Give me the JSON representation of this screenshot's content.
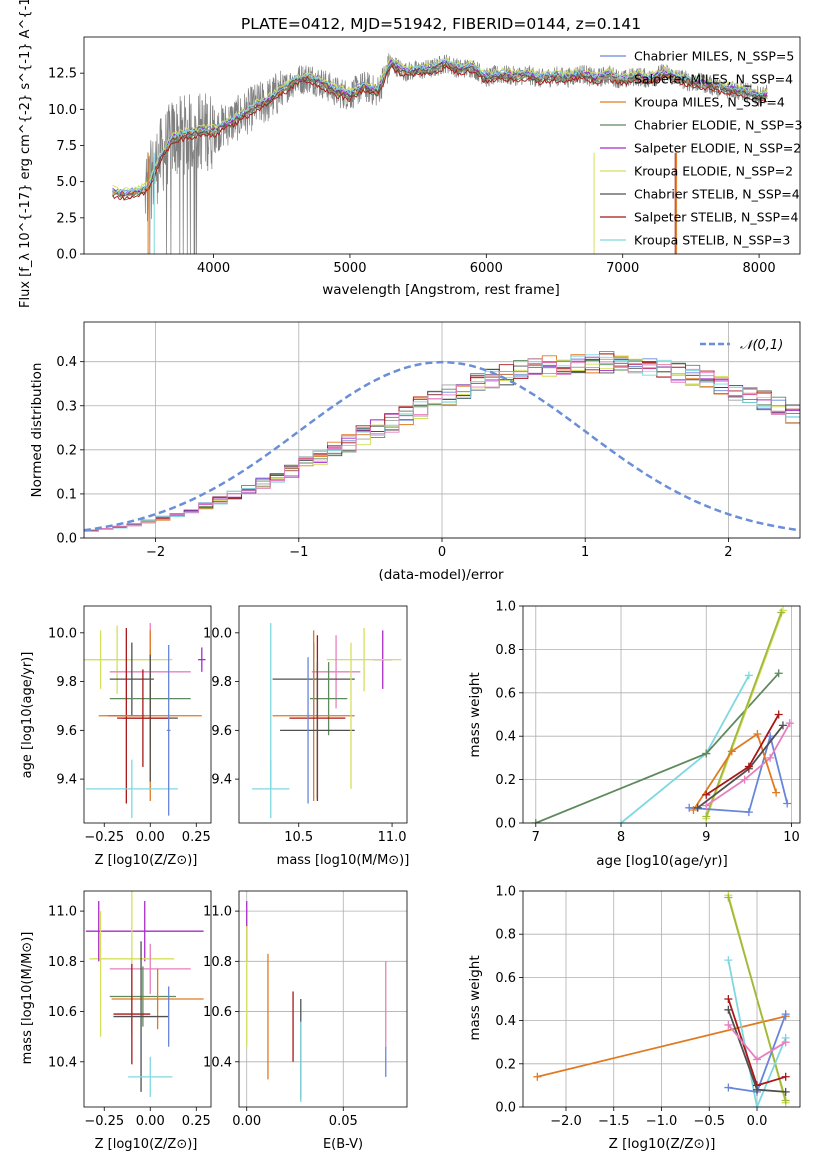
{
  "chart_data": [
    {
      "type": "line",
      "title": "PLATE=0412, MJD=51942, FIBERID=0144, z=0.141",
      "xlabel": "wavelength [Angstrom, rest frame]",
      "ylabel": "Flux [f_λ 10^{-17} erg cm^{-2} s^{-1} A^{-1}]",
      "xlim": [
        3050,
        8300
      ],
      "ylim": [
        0,
        15
      ],
      "xticks": [
        4000,
        5000,
        6000,
        7000,
        8000
      ],
      "yticks": [
        0.0,
        2.5,
        5.0,
        7.5,
        10.0,
        12.5
      ],
      "ytick_labels": [
        "0.0",
        "2.5",
        "5.0",
        "7.5",
        "10.0",
        "12.5"
      ],
      "grid": false,
      "legend_position": "right",
      "data_line": {
        "color": "#808080",
        "x": [
          3260,
          3350,
          3450,
          3520,
          3600,
          3700,
          3800,
          3900,
          4000,
          4100,
          4200,
          4300,
          4400,
          4500,
          4600,
          4700,
          4800,
          4900,
          5000,
          5100,
          5200,
          5300,
          5400,
          5500,
          5600,
          5700,
          5800,
          5900,
          6000,
          6100,
          6200,
          6300,
          6400,
          6500,
          6600,
          6700,
          6800,
          6900,
          7000,
          7100,
          7200,
          7300,
          7400,
          7500,
          7600,
          7700,
          7800,
          7900,
          8000,
          8060
        ],
        "y": [
          4.3,
          4.1,
          4.3,
          4.6,
          6.5,
          8.0,
          8.3,
          8.5,
          8.5,
          9.0,
          9.5,
          10.2,
          10.6,
          11.3,
          12.0,
          12.2,
          11.8,
          11.2,
          11.0,
          11.6,
          11.2,
          13.2,
          12.6,
          12.7,
          12.8,
          13.2,
          12.8,
          12.9,
          12.2,
          12.4,
          12.3,
          12.4,
          12.1,
          12.3,
          12.2,
          12.5,
          12.1,
          12.4,
          12.0,
          12.3,
          12.1,
          12.5,
          12.2,
          11.9,
          11.8,
          11.5,
          11.4,
          11.2,
          10.9,
          11.0
        ]
      },
      "series": [
        {
          "name": "Chabrier MILES, N_SSP=5",
          "color": "#6886d9",
          "dy": 0.2
        },
        {
          "name": "Salpeter MILES, N_SSP=4",
          "color": "#a0a0a0",
          "dy": -0.1
        },
        {
          "name": "Kroupa MILES, N_SSP=4",
          "color": "#e07a22",
          "dy": 0.0
        },
        {
          "name": "Chabrier ELODIE, N_SSP=3",
          "color": "#5e8a5e",
          "dy": -0.2
        },
        {
          "name": "Salpeter ELODIE, N_SSP=2",
          "color": "#a82cc8",
          "dy": 0.1
        },
        {
          "name": "Kroupa ELODIE, N_SSP=2",
          "color": "#d4e05a",
          "dy": 0.3
        },
        {
          "name": "Chabrier STELIB, N_SSP=4",
          "color": "#505050",
          "dy": 0.0
        },
        {
          "name": "Salpeter STELIB, N_SSP=4",
          "color": "#a81818",
          "dy": -0.3
        },
        {
          "name": "Kroupa STELIB, N_SSP=3",
          "color": "#7fd8e0",
          "dy": 0.15
        }
      ]
    },
    {
      "type": "histogram",
      "xlabel": "(data-model)/error",
      "ylabel": "Normed distribution",
      "xlim": [
        -2.5,
        2.5
      ],
      "ylim": [
        0,
        0.49
      ],
      "xticks": [
        -2,
        -1,
        0,
        1,
        2
      ],
      "xtick_labels": [
        "−2",
        "−1",
        "0",
        "1",
        "2"
      ],
      "yticks": [
        0.0,
        0.1,
        0.2,
        0.3,
        0.4
      ],
      "ytick_labels": [
        "0.0",
        "0.1",
        "0.2",
        "0.3",
        "0.4"
      ],
      "grid": true,
      "legend_position": "top-right",
      "gaussian": {
        "label": "𝒩(0,1)",
        "color": "#6a8fd8",
        "mean": 0,
        "sigma": 1
      },
      "bins": {
        "start": -2.5,
        "width": 0.1
      },
      "hist_base": [
        0.017,
        0.021,
        0.025,
        0.03,
        0.037,
        0.045,
        0.053,
        0.063,
        0.073,
        0.085,
        0.097,
        0.11,
        0.124,
        0.138,
        0.153,
        0.168,
        0.184,
        0.2,
        0.216,
        0.232,
        0.248,
        0.264,
        0.28,
        0.295,
        0.31,
        0.324,
        0.337,
        0.349,
        0.36,
        0.37,
        0.378,
        0.385,
        0.39,
        0.394,
        0.397,
        0.399,
        0.399,
        0.397,
        0.394,
        0.39,
        0.385,
        0.378,
        0.37,
        0.36,
        0.349,
        0.337,
        0.324,
        0.31,
        0.295,
        0.28
      ]
    },
    {
      "type": "scatter",
      "xlabel": "Z [log10(Z/Z⊙)]",
      "ylabel": "age [log10(age/yr)]",
      "xlim": [
        -0.36,
        0.33
      ],
      "ylim": [
        9.22,
        10.11
      ],
      "xticks": [
        -0.25,
        0,
        0.25
      ],
      "xtick_labels": [
        "−0.25",
        "0.00",
        "0.25"
      ],
      "yticks": [
        9.4,
        9.6,
        9.8,
        10.0
      ],
      "ytick_labels": [
        "9.4",
        "9.6",
        "9.8",
        "10.0"
      ],
      "grid": false,
      "points": [
        {
          "x": -0.27,
          "y": 9.89,
          "xerr": 0.27,
          "yerr": 0.12,
          "color": "#d4e05a"
        },
        {
          "x": -0.18,
          "y": 9.89,
          "xerr": 0.3,
          "yerr": 0.14,
          "color": "#d4e05a"
        },
        {
          "x": 0.28,
          "y": 9.89,
          "xerr": 0.02,
          "yerr": 0.05,
          "color": "#a82cc8"
        },
        {
          "x": 0.0,
          "y": 9.84,
          "xerr": 0.22,
          "yerr": 0.2,
          "color": "#e77fbf"
        },
        {
          "x": -0.1,
          "y": 9.81,
          "xerr": 0.12,
          "yerr": 0.15,
          "color": "#505050"
        },
        {
          "x": 0.0,
          "y": 9.73,
          "xerr": 0.22,
          "yerr": 0.2,
          "color": "#5e8a5e"
        },
        {
          "x": -0.13,
          "y": 9.66,
          "xerr": 0.1,
          "yerr": 0.36,
          "color": "#a81818"
        },
        {
          "x": 0.0,
          "y": 9.66,
          "xerr": 0.28,
          "yerr": 0.35,
          "color": "#e07a22"
        },
        {
          "x": 0.0,
          "y": 9.65,
          "xerr": 0.15,
          "yerr": 0.26,
          "color": "#505050"
        },
        {
          "x": -0.04,
          "y": 9.65,
          "xerr": 0.14,
          "yerr": 0.2,
          "color": "#a81818"
        },
        {
          "x": -0.1,
          "y": 9.36,
          "xerr": 0.25,
          "yerr": 0.12,
          "color": "#7fd8e0"
        },
        {
          "x": 0.1,
          "y": 9.6,
          "xerr": 0.01,
          "yerr": 0.35,
          "color": "#6886d9"
        }
      ]
    },
    {
      "type": "scatter",
      "xlabel": "mass [log10(M/M⊙)]",
      "ylabel": "",
      "xlim": [
        10.18,
        11.08
      ],
      "ylim": [
        9.22,
        10.11
      ],
      "xticks": [
        10.5,
        11.0
      ],
      "xtick_labels": [
        "10.5",
        "11.0"
      ],
      "yticks": [
        9.4,
        9.6,
        9.8,
        10.0
      ],
      "ytick_labels": [
        "9.4",
        "9.6",
        "9.8",
        "10.0"
      ],
      "grid": false,
      "points": [
        {
          "x": 10.95,
          "y": 9.89,
          "xerr": 0.05,
          "yerr": 0.12,
          "color": "#a82cc8"
        },
        {
          "x": 10.85,
          "y": 9.89,
          "xerr": 0.2,
          "yerr": 0.13,
          "color": "#d4e05a"
        },
        {
          "x": 10.7,
          "y": 9.84,
          "xerr": 0.13,
          "yerr": 0.15,
          "color": "#e77fbf"
        },
        {
          "x": 10.58,
          "y": 9.81,
          "xerr": 0.22,
          "yerr": 0.15,
          "color": "#505050"
        },
        {
          "x": 10.66,
          "y": 9.73,
          "xerr": 0.1,
          "yerr": 0.15,
          "color": "#5e8a5e"
        },
        {
          "x": 10.58,
          "y": 9.66,
          "xerr": 0.22,
          "yerr": 0.35,
          "color": "#e07a22"
        },
        {
          "x": 10.6,
          "y": 9.65,
          "xerr": 0.15,
          "yerr": 0.34,
          "color": "#a81818"
        },
        {
          "x": 10.6,
          "y": 9.6,
          "xerr": 0.2,
          "yerr": 0.28,
          "color": "#505050"
        },
        {
          "x": 10.35,
          "y": 9.36,
          "xerr": 0.1,
          "yerr": 0.12,
          "color": "#7fd8e0"
        },
        {
          "x": 10.35,
          "y": 9.7,
          "xerr": 0.0,
          "yerr": 0.34,
          "color": "#7fd8e0"
        },
        {
          "x": 10.55,
          "y": 9.6,
          "xerr": 0.0,
          "yerr": 0.3,
          "color": "#6886d9"
        },
        {
          "x": 10.78,
          "y": 9.66,
          "xerr": 0.0,
          "yerr": 0.3,
          "color": "#d4e05a"
        }
      ]
    },
    {
      "type": "line",
      "xlabel": "age  [log10(age/yr)]",
      "ylabel": "mass weight",
      "xlim": [
        6.85,
        10.1
      ],
      "ylim": [
        0,
        1
      ],
      "xticks": [
        7,
        8,
        9,
        10
      ],
      "xtick_labels": [
        "7",
        "8",
        "9",
        "10"
      ],
      "yticks": [
        0,
        0.2,
        0.4,
        0.6,
        0.8,
        1.0
      ],
      "ytick_labels": [
        "0.0",
        "0.2",
        "0.4",
        "0.6",
        "0.8",
        "1.0"
      ],
      "grid": true,
      "series": [
        {
          "color": "#7fd8e0",
          "x": [
            8.0,
            9.0,
            9.5
          ],
          "y": [
            0.0,
            0.32,
            0.68
          ]
        },
        {
          "color": "#5e8a5e",
          "x": [
            7.0,
            9.0,
            9.85
          ],
          "y": [
            0.0,
            0.32,
            0.69
          ]
        },
        {
          "color": "#d4e05a",
          "x": [
            9.0,
            9.9
          ],
          "y": [
            0.02,
            0.98
          ]
        },
        {
          "color": "#a0b83c",
          "x": [
            9.0,
            9.88
          ],
          "y": [
            0.03,
            0.97
          ]
        },
        {
          "color": "#6886d9",
          "x": [
            8.8,
            9.5,
            9.75,
            9.95
          ],
          "y": [
            0.07,
            0.05,
            0.4,
            0.09
          ]
        },
        {
          "color": "#e77fbf",
          "x": [
            9.0,
            9.45,
            9.75,
            9.98
          ],
          "y": [
            0.08,
            0.2,
            0.3,
            0.46
          ]
        },
        {
          "color": "#e07a22",
          "x": [
            8.85,
            9.3,
            9.6,
            9.82
          ],
          "y": [
            0.06,
            0.33,
            0.41,
            0.14
          ]
        },
        {
          "color": "#505050",
          "x": [
            8.9,
            9.5,
            9.9
          ],
          "y": [
            0.07,
            0.25,
            0.45
          ]
        },
        {
          "color": "#a81818",
          "x": [
            9.0,
            9.5,
            9.85
          ],
          "y": [
            0.13,
            0.26,
            0.5
          ]
        }
      ]
    },
    {
      "type": "scatter",
      "xlabel": "Z [log10(Z/Z⊙)]",
      "ylabel": "mass [log10(M/M⊙)]",
      "xlim": [
        -0.36,
        0.33
      ],
      "ylim": [
        10.22,
        11.08
      ],
      "xticks": [
        -0.25,
        0,
        0.25
      ],
      "xtick_labels": [
        "−0.25",
        "0.00",
        "0.25"
      ],
      "yticks": [
        10.4,
        10.6,
        10.8,
        11.0
      ],
      "ytick_labels": [
        "10.4",
        "10.6",
        "10.8",
        "11.0"
      ],
      "grid": false,
      "points": [
        {
          "x": -0.03,
          "y": 10.92,
          "xerr": 0.32,
          "yerr": 0.12,
          "color": "#a82cc8"
        },
        {
          "x": -0.1,
          "y": 10.81,
          "xerr": 0.23,
          "yerr": 0.3,
          "color": "#d4e05a"
        },
        {
          "x": 0.0,
          "y": 10.77,
          "xerr": 0.22,
          "yerr": 0.1,
          "color": "#e77fbf"
        },
        {
          "x": -0.04,
          "y": 10.66,
          "xerr": 0.18,
          "yerr": 0.12,
          "color": "#5e8a5e"
        },
        {
          "x": 0.04,
          "y": 10.65,
          "xerr": 0.25,
          "yerr": 0.12,
          "color": "#e07a22"
        },
        {
          "x": -0.1,
          "y": 10.59,
          "xerr": 0.1,
          "yerr": 0.2,
          "color": "#a81818"
        },
        {
          "x": -0.05,
          "y": 10.58,
          "xerr": 0.15,
          "yerr": 0.3,
          "color": "#505050"
        },
        {
          "x": 0.0,
          "y": 10.34,
          "xerr": 0.12,
          "yerr": 0.08,
          "color": "#7fd8e0"
        },
        {
          "x": 0.1,
          "y": 10.58,
          "xerr": 0.0,
          "yerr": 0.12,
          "color": "#6886d9"
        },
        {
          "x": -0.28,
          "y": 10.92,
          "xerr": 0.0,
          "yerr": 0.12,
          "color": "#a82cc8"
        },
        {
          "x": -0.27,
          "y": 10.75,
          "xerr": 0.0,
          "yerr": 0.25,
          "color": "#d4e05a"
        }
      ]
    },
    {
      "type": "scatter",
      "xlabel": "E(B-V)",
      "ylabel": "",
      "xlim": [
        -0.004,
        0.083
      ],
      "ylim": [
        10.22,
        11.08
      ],
      "xticks": [
        0.0,
        0.05
      ],
      "xtick_labels": [
        "0.00",
        "0.05"
      ],
      "yticks": [
        10.4,
        10.6,
        10.8,
        11.0
      ],
      "ytick_labels": [
        "10.4",
        "10.6",
        "10.8",
        "11.0"
      ],
      "grid": true,
      "points": [
        {
          "x": 0.0,
          "y": 10.92,
          "xerr": 0,
          "yerr": 0.12,
          "color": "#a82cc8"
        },
        {
          "x": 0.0,
          "y": 10.7,
          "xerr": 0,
          "yerr": 0.24,
          "color": "#d4e05a"
        },
        {
          "x": 0.011,
          "y": 10.58,
          "xerr": 0,
          "yerr": 0.25,
          "color": "#e07a22"
        },
        {
          "x": 0.024,
          "y": 10.54,
          "xerr": 0,
          "yerr": 0.14,
          "color": "#a81818"
        },
        {
          "x": 0.028,
          "y": 10.45,
          "xerr": 0,
          "yerr": 0.2,
          "color": "#505050"
        },
        {
          "x": 0.028,
          "y": 10.4,
          "xerr": 0,
          "yerr": 0.16,
          "color": "#7fd8e0"
        },
        {
          "x": 0.072,
          "y": 10.63,
          "xerr": 0,
          "yerr": 0.17,
          "color": "#e77fbf"
        },
        {
          "x": 0.072,
          "y": 10.4,
          "xerr": 0,
          "yerr": 0.06,
          "color": "#6886d9"
        }
      ]
    },
    {
      "type": "line",
      "xlabel": "Z [log10(Z/Z⊙)]",
      "ylabel": "mass weight",
      "xlim": [
        -2.45,
        0.45
      ],
      "ylim": [
        0,
        1
      ],
      "xticks": [
        -2.0,
        -1.5,
        -1.0,
        -0.5,
        0.0
      ],
      "xtick_labels": [
        "−2.0",
        "−1.5",
        "−1.0",
        "−0.5",
        "0.0"
      ],
      "yticks": [
        0,
        0.2,
        0.4,
        0.6,
        0.8,
        1.0
      ],
      "ytick_labels": [
        "0.0",
        "0.2",
        "0.4",
        "0.6",
        "0.8",
        "1.0"
      ],
      "grid": true,
      "series": [
        {
          "color": "#e07a22",
          "x": [
            -2.3,
            0.3
          ],
          "y": [
            0.14,
            0.42
          ]
        },
        {
          "color": "#d4e05a",
          "x": [
            -0.3,
            0.3
          ],
          "y": [
            0.98,
            0.02
          ]
        },
        {
          "color": "#a0b83c",
          "x": [
            -0.3,
            0.3
          ],
          "y": [
            0.97,
            0.03
          ]
        },
        {
          "color": "#7fd8e0",
          "x": [
            -0.3,
            0.0,
            0.3
          ],
          "y": [
            0.68,
            0.0,
            0.32
          ]
        },
        {
          "color": "#6886d9",
          "x": [
            -0.3,
            0.0,
            0.3
          ],
          "y": [
            0.09,
            0.07,
            0.43
          ]
        },
        {
          "color": "#a81818",
          "x": [
            -0.3,
            0.0,
            0.3
          ],
          "y": [
            0.5,
            0.1,
            0.14
          ]
        },
        {
          "color": "#505050",
          "x": [
            -0.3,
            0.0,
            0.3
          ],
          "y": [
            0.45,
            0.08,
            0.07
          ]
        },
        {
          "color": "#e77fbf",
          "x": [
            -0.3,
            0.0,
            0.3
          ],
          "y": [
            0.38,
            0.22,
            0.3
          ]
        }
      ]
    }
  ]
}
